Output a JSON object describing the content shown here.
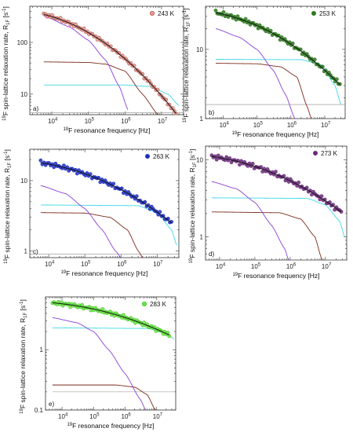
{
  "colors": {
    "fit": "#1a1a1a",
    "purple": "#8a3fd6",
    "brown": "#7a2a1a",
    "cyan": "#3fd8e6",
    "gray": "#8c8c8c"
  },
  "chart_data": [
    {
      "type": "scatter",
      "panel": "a)",
      "legend": "243 K",
      "marker_color": "#b5504a",
      "marker_fill": "#e89a90",
      "xlim": [
        2500,
        40000000
      ],
      "ylim": [
        4,
        500
      ],
      "xticks": [
        4,
        5,
        6,
        7
      ],
      "yticks": [
        10,
        100
      ],
      "ylabel": "19F spin-lattice relaxation rate, R1F [s-1]",
      "ylabel_html": [
        "19",
        "F spin-lattice relaxation rate, R",
        "1F",
        " [s",
        "-1",
        "]"
      ],
      "xlabel": "19F resonance frequency [Hz]",
      "data": {
        "x_range": [
          6000,
          25000000
        ],
        "y_range": [
          350,
          4.2
        ],
        "n": 80
      },
      "curves": {
        "purple": [
          [
            6000,
            330
          ],
          [
            30000,
            200
          ],
          [
            100000,
            110
          ],
          [
            300000,
            45
          ],
          [
            700000,
            14
          ],
          [
            1200000,
            5
          ]
        ],
        "brown": [
          [
            6000,
            42
          ],
          [
            100000,
            41
          ],
          [
            300000,
            38
          ],
          [
            1000000,
            28
          ],
          [
            3000000,
            10
          ],
          [
            8000000,
            4
          ]
        ],
        "cyan": [
          [
            6000,
            15
          ],
          [
            1000000,
            15
          ],
          [
            5000000,
            14
          ],
          [
            15000000,
            10
          ],
          [
            30000000,
            6
          ]
        ],
        "gray": [
          [
            2500,
            4.4
          ],
          [
            40000000,
            4.4
          ]
        ]
      }
    },
    {
      "type": "scatter",
      "panel": "b)",
      "legend": "253 K",
      "marker_color": "#2e7a1e",
      "marker_fill": "#2e7a1e",
      "xlim": [
        3000,
        40000000
      ],
      "ylim": [
        1,
        42
      ],
      "xticks": [
        4,
        5,
        6,
        7
      ],
      "yticks": [
        1,
        10
      ],
      "ylabel": "19F spin-lattice relaxation rate, R1F [s-1]",
      "ylabel_html": [
        "19",
        "F spin-lattice relaxation rate, R",
        "1F",
        " [s",
        "-1",
        "]"
      ],
      "xlabel": "19F resonance frequency [Hz]",
      "data": {
        "x_range": [
          6000,
          28000000
        ],
        "y_range": [
          34,
          3.1
        ],
        "n": 80
      },
      "curves": {
        "purple": [
          [
            6000,
            20
          ],
          [
            30000,
            15
          ],
          [
            100000,
            10
          ],
          [
            300000,
            5
          ],
          [
            700000,
            2.2
          ],
          [
            1300000,
            1
          ]
        ],
        "brown": [
          [
            6000,
            6.3
          ],
          [
            100000,
            6.2
          ],
          [
            500000,
            5.6
          ],
          [
            1500000,
            4
          ],
          [
            3000000,
            1.5
          ],
          [
            4000000,
            1
          ]
        ],
        "cyan": [
          [
            6000,
            7.2
          ],
          [
            2000000,
            7.1
          ],
          [
            8000000,
            6
          ],
          [
            20000000,
            3
          ],
          [
            30000000,
            1.6
          ]
        ],
        "gray": [
          [
            3000,
            1.6
          ],
          [
            40000000,
            1.6
          ]
        ]
      }
    },
    {
      "type": "scatter",
      "panel": "c)",
      "legend": "263 K",
      "marker_color": "#1f2fbf",
      "marker_fill": "#1f2fbf",
      "xlim": [
        3000,
        40000000
      ],
      "ylim": [
        0.8,
        28
      ],
      "xticks": [
        4,
        5,
        6,
        7
      ],
      "yticks": [
        1,
        10
      ],
      "ylabel": "19F spin-lattice relaxation rate, R1F [s-1]",
      "ylabel_html": [
        "19",
        "F spin-lattice relaxation rate, R",
        "1F",
        " [s",
        "-1",
        "]"
      ],
      "xlabel": "19F resonance frequency [Hz]",
      "data": {
        "x_range": [
          6000,
          25000000
        ],
        "y_range": [
          18,
          2.5
        ],
        "n": 80
      },
      "curves": {
        "purple": [
          [
            6000,
            8.5
          ],
          [
            30000,
            6.5
          ],
          [
            100000,
            4
          ],
          [
            300000,
            2
          ],
          [
            700000,
            1
          ],
          [
            1000000,
            0.8
          ]
        ],
        "brown": [
          [
            6000,
            3.5
          ],
          [
            100000,
            3.45
          ],
          [
            500000,
            3
          ],
          [
            1500000,
            2
          ],
          [
            3000000,
            1
          ],
          [
            4000000,
            0.8
          ]
        ],
        "cyan": [
          [
            6000,
            4.5
          ],
          [
            3000000,
            4.4
          ],
          [
            10000000,
            3.5
          ],
          [
            25000000,
            2
          ],
          [
            35000000,
            1.2
          ]
        ],
        "gray": [
          [
            3000,
            0.9
          ],
          [
            40000000,
            0.9
          ]
        ]
      }
    },
    {
      "type": "scatter",
      "panel": "d)",
      "legend": "273 K",
      "marker_color": "#6a2a7a",
      "marker_fill": "#6a2a7a",
      "xlim": [
        4000,
        40000000
      ],
      "ylim": [
        0.5,
        15
      ],
      "xticks": [
        4,
        5,
        6,
        7
      ],
      "yticks": [
        1,
        10
      ],
      "ylabel": "19F spin-lattice relaxation rate, R1F [s-1]",
      "ylabel_html": [
        "19",
        "F spin-lattice relaxation rate, R",
        "1F",
        " [s",
        "-1",
        "]"
      ],
      "xlabel": "19F resonance frequency [Hz]",
      "data": {
        "x_range": [
          6000,
          28000000
        ],
        "y_range": [
          11,
          2.1
        ],
        "n": 80
      },
      "curves": {
        "purple": [
          [
            6000,
            5.2
          ],
          [
            30000,
            4.2
          ],
          [
            100000,
            2.8
          ],
          [
            300000,
            1.4
          ],
          [
            700000,
            0.7
          ],
          [
            900000,
            0.5
          ]
        ],
        "brown": [
          [
            6000,
            2.1
          ],
          [
            500000,
            2.05
          ],
          [
            2000000,
            1.7
          ],
          [
            5000000,
            1
          ],
          [
            8000000,
            0.5
          ]
        ],
        "cyan": [
          [
            6000,
            3.2
          ],
          [
            3000000,
            3.15
          ],
          [
            10000000,
            2.6
          ],
          [
            25000000,
            1.6
          ],
          [
            35000000,
            1
          ]
        ],
        "gray": [
          [
            4000,
            0.5
          ],
          [
            40000000,
            0.5
          ]
        ]
      }
    },
    {
      "type": "scatter",
      "panel": "e)",
      "legend": "283 K",
      "marker_color": "#39c81a",
      "marker_fill": "#6fe04a",
      "xlim": [
        3000,
        40000000
      ],
      "ylim": [
        0.1,
        7.5
      ],
      "xticks": [
        4,
        5,
        6,
        7
      ],
      "yticks": [
        0.1,
        1
      ],
      "ylabel": "19F spin-lattice relaxation rate, R1F [s-1]",
      "ylabel_html": [
        "19",
        "F spin-lattice relaxation rate, R",
        "1F",
        " [s",
        "-1",
        "]"
      ],
      "xlabel": "19F resonance frequency [Hz]",
      "data": {
        "x_range": [
          5000,
          25000000
        ],
        "y_range": [
          6,
          1.75
        ],
        "n": 80
      },
      "curves": {
        "purple": [
          [
            5000,
            3.4
          ],
          [
            30000,
            2.8
          ],
          [
            100000,
            2
          ],
          [
            300000,
            1
          ],
          [
            1000000,
            0.4
          ],
          [
            3000000,
            0.15
          ],
          [
            4500000,
            0.1
          ]
        ],
        "brown": [
          [
            5000,
            0.26
          ],
          [
            500000,
            0.26
          ],
          [
            2000000,
            0.24
          ],
          [
            5000000,
            0.18
          ],
          [
            9000000,
            0.1
          ]
        ],
        "cyan": [
          [
            5000,
            2.3
          ],
          [
            5000000,
            2.25
          ],
          [
            20000000,
            1.9
          ],
          [
            35000000,
            1.5
          ]
        ],
        "gray": [
          [
            5000,
            0.2
          ],
          [
            35000000,
            0.2
          ]
        ]
      }
    }
  ]
}
